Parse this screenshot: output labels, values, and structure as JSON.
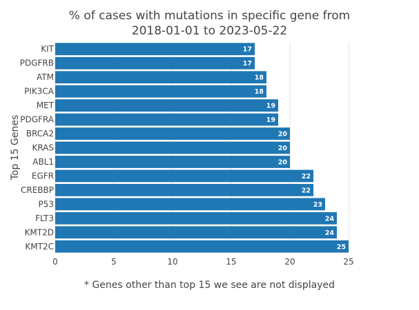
{
  "chart_data": {
    "type": "bar",
    "orientation": "horizontal",
    "title_line1": "% of cases with mutations in specific gene from",
    "title_line2": "2018-01-01 to 2023-05-22",
    "ylabel": "Top 15 Genes",
    "xlabel": "",
    "categories": [
      "KIT",
      "PDGFRB",
      "ATM",
      "PIK3CA",
      "MET",
      "PDGFRA",
      "BRCA2",
      "KRAS",
      "ABL1",
      "EGFR",
      "CREBBP",
      "P53",
      "FLT3",
      "KMT2D",
      "KMT2C"
    ],
    "values": [
      17,
      17,
      18,
      18,
      19,
      19,
      20,
      20,
      20,
      22,
      22,
      23,
      24,
      24,
      25
    ],
    "xlim": [
      0,
      25
    ],
    "xticks": [
      "0",
      "5",
      "10",
      "15",
      "20",
      "25"
    ],
    "grid": true,
    "bar_color": "#1f77b4",
    "footnote": "* Genes other than top 15 we see are not displayed"
  }
}
